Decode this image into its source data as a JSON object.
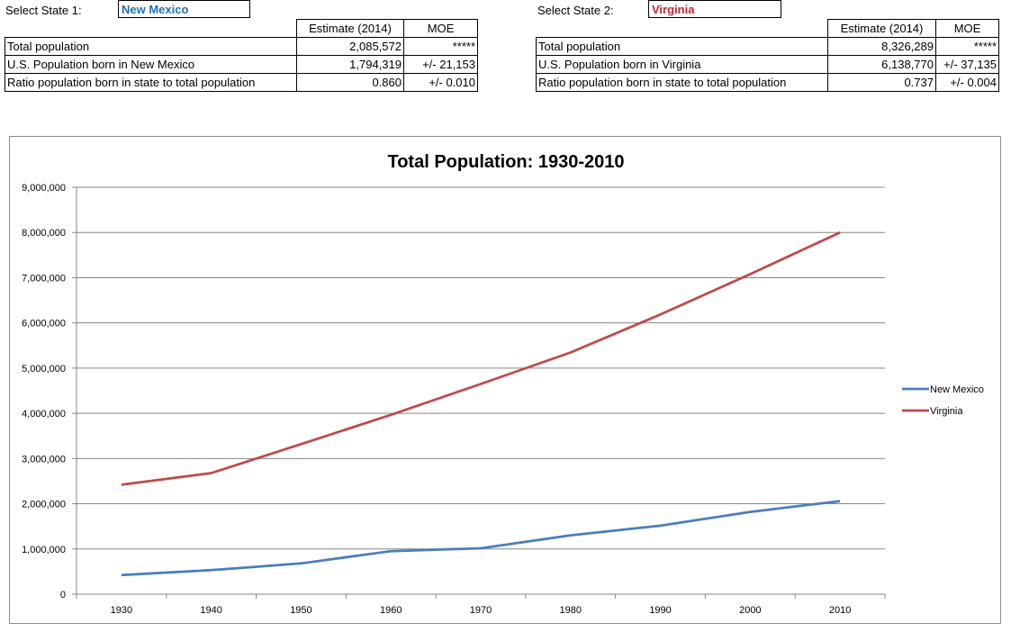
{
  "state1": {
    "select_label": "Select State 1:",
    "value": "New Mexico",
    "color": "#1f6fb8",
    "table": {
      "headers": [
        "",
        "Estimate (2014)",
        "MOE"
      ],
      "rows": [
        {
          "label": "Total population",
          "estimate": "2,085,572",
          "moe": "*****"
        },
        {
          "label": "U.S. Population born in New Mexico",
          "estimate": "1,794,319",
          "moe": "+/- 21,153"
        },
        {
          "label": "Ratio population born in state to total population",
          "estimate": "0.860",
          "moe": "+/- 0.010"
        }
      ]
    }
  },
  "state2": {
    "select_label": "Select State 2:",
    "value": "Virginia",
    "color": "#c0272d",
    "table": {
      "headers": [
        "",
        "Estimate (2014)",
        "MOE"
      ],
      "rows": [
        {
          "label": "Total population",
          "estimate": "8,326,289",
          "moe": "*****"
        },
        {
          "label": "U.S. Population born in Virginia",
          "estimate": "6,138,770",
          "moe": "+/- 37,135"
        },
        {
          "label": "Ratio population born in state to total population",
          "estimate": "0.737",
          "moe": "+/- 0.004"
        }
      ]
    }
  },
  "chart_data": {
    "type": "line",
    "title": "Total Population: 1930-2010",
    "xlabel": "",
    "ylabel": "",
    "x": [
      1930,
      1940,
      1950,
      1960,
      1970,
      1980,
      1990,
      2000,
      2010
    ],
    "x_tick_labels": [
      "1930",
      "1940",
      "1950",
      "1960",
      "1970",
      "1980",
      "1990",
      "2000",
      "2010"
    ],
    "ylim": [
      0,
      9000000
    ],
    "y_ticks": [
      0,
      1000000,
      2000000,
      3000000,
      4000000,
      5000000,
      6000000,
      7000000,
      8000000,
      9000000
    ],
    "y_tick_labels": [
      "0",
      "1,000,000",
      "2,000,000",
      "3,000,000",
      "4,000,000",
      "5,000,000",
      "6,000,000",
      "7,000,000",
      "8,000,000",
      "9,000,000"
    ],
    "grid": true,
    "legend_position": "right",
    "series": [
      {
        "name": "New Mexico",
        "color": "#4a7ebb",
        "values": [
          423317,
          531818,
          681187,
          951023,
          1016000,
          1302894,
          1515069,
          1819046,
          2059179
        ]
      },
      {
        "name": "Virginia",
        "color": "#be4b48",
        "values": [
          2421851,
          2677773,
          3318680,
          3966949,
          4648494,
          5346818,
          6187358,
          7078515,
          8001024
        ]
      }
    ]
  }
}
